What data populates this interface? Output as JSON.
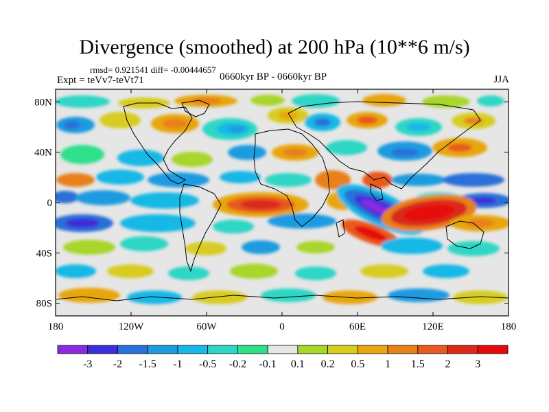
{
  "title": "Divergence (smoothed) at 200 hPa (10**6 m/s)",
  "stats": "rmsd= 0.921541 diff= -0.00444657",
  "experiment": "Expt = teVv7-teVt71",
  "period": "0660kyr BP - 0660kyr BP",
  "season": "JJA",
  "axes": {
    "lat_labels": [
      "80N",
      "40N",
      "0",
      "40S",
      "80S"
    ],
    "lon_labels": [
      "180",
      "120W",
      "60W",
      "0",
      "60E",
      "120E",
      "180"
    ]
  },
  "colorbar": {
    "labels": [
      "-3",
      "-2",
      "-1.5",
      "-1",
      "-0.5",
      "-0.2",
      "-0.1",
      "0.1",
      "0.2",
      "0.5",
      "1",
      "1.5",
      "2",
      "3"
    ],
    "colors": [
      "#8a2be2",
      "#3b2fd9",
      "#2b6fd8",
      "#1f9be0",
      "#19b8e6",
      "#2fd6c6",
      "#2fe08a",
      "#e6e6e6",
      "#a8d62a",
      "#d8cc20",
      "#e8a610",
      "#e8801a",
      "#e85a1e",
      "#d92a1a",
      "#e60a0a"
    ]
  },
  "colors": {
    "neutral": "#e6e6e6"
  }
}
